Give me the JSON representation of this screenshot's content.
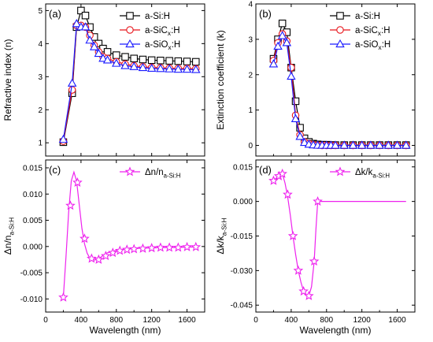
{
  "colors": {
    "black": "#000000",
    "red": "#e8151b",
    "blue": "#1a1aff",
    "magenta": "#ee22ee"
  },
  "chart_data": [
    {
      "panel": "(a)",
      "type": "line",
      "xlabel": "",
      "ylabel": "Refractive index (n)",
      "xlim": [
        0,
        1800
      ],
      "ylim": [
        0.6,
        5.2
      ],
      "xticks": [
        0,
        400,
        800,
        1200,
        1600
      ],
      "yticks": [
        1,
        2,
        3,
        4,
        5
      ],
      "show_xticklabels": false,
      "legend": "top-right",
      "series": [
        {
          "name": "a-Si:H",
          "color": "#000000",
          "marker": "square",
          "x": [
            200,
            300,
            350,
            400,
            450,
            500,
            550,
            600,
            650,
            700,
            800,
            900,
            1000,
            1100,
            1200,
            1300,
            1400,
            1500,
            1600,
            1700
          ],
          "y": [
            1.02,
            2.5,
            4.5,
            5.0,
            4.85,
            4.5,
            4.2,
            4.0,
            3.85,
            3.75,
            3.65,
            3.6,
            3.55,
            3.52,
            3.5,
            3.49,
            3.48,
            3.47,
            3.46,
            3.45
          ]
        },
        {
          "name": "a-SiCx:H",
          "color": "#e8151b",
          "marker": "circle",
          "x": [
            200,
            300,
            350,
            400,
            450,
            500,
            550,
            600,
            650,
            700,
            800,
            900,
            1000,
            1100,
            1200,
            1300,
            1400,
            1500,
            1600,
            1700
          ],
          "y": [
            1.05,
            2.6,
            4.55,
            4.55,
            4.5,
            4.25,
            3.95,
            3.75,
            3.6,
            3.55,
            3.45,
            3.38,
            3.33,
            3.3,
            3.28,
            3.27,
            3.26,
            3.25,
            3.25,
            3.24
          ]
        },
        {
          "name": "a-SiOx:H",
          "color": "#1a1aff",
          "marker": "triangle",
          "x": [
            200,
            300,
            350,
            400,
            450,
            500,
            550,
            600,
            650,
            700,
            800,
            900,
            1000,
            1100,
            1200,
            1300,
            1400,
            1500,
            1600,
            1700
          ],
          "y": [
            1.1,
            2.8,
            4.6,
            4.5,
            4.5,
            4.1,
            3.9,
            3.7,
            3.55,
            3.5,
            3.4,
            3.33,
            3.3,
            3.27,
            3.25,
            3.24,
            3.23,
            3.22,
            3.22,
            3.21
          ]
        }
      ]
    },
    {
      "panel": "(b)",
      "type": "line",
      "xlabel": "",
      "ylabel": "Extinction coefficient (k)",
      "xlim": [
        0,
        1800
      ],
      "ylim": [
        -0.3,
        4
      ],
      "xticks": [
        0,
        400,
        800,
        1200,
        1600
      ],
      "yticks": [
        0,
        1,
        2,
        3,
        4
      ],
      "show_xticklabels": false,
      "legend": "top-right",
      "series": [
        {
          "name": "a-Si:H",
          "color": "#000000",
          "marker": "square",
          "x": [
            200,
            250,
            300,
            350,
            400,
            450,
            500,
            550,
            600,
            650,
            700,
            750,
            800,
            850,
            900,
            1000,
            1100,
            1200,
            1300,
            1400,
            1500,
            1600,
            1700
          ],
          "y": [
            2.45,
            3.0,
            3.45,
            3.2,
            2.2,
            1.25,
            0.5,
            0.2,
            0.1,
            0.05,
            0.03,
            0.02,
            0.02,
            0.01,
            0.01,
            0.01,
            0.01,
            0.01,
            0.01,
            0.01,
            0.01,
            0.01,
            0.01
          ]
        },
        {
          "name": "a-SiCx:H",
          "color": "#e8151b",
          "marker": "circle",
          "x": [
            200,
            250,
            300,
            350,
            400,
            450,
            500,
            550,
            600,
            650,
            700,
            750,
            800,
            850,
            900,
            1000,
            1100,
            1200,
            1300,
            1400,
            1500,
            1600,
            1700
          ],
          "y": [
            2.4,
            2.9,
            3.15,
            2.95,
            2.2,
            0.85,
            0.3,
            0.1,
            0.05,
            0.02,
            0.01,
            0.0,
            0.0,
            0.0,
            0.0,
            0.0,
            0.0,
            0.0,
            0.0,
            0.0,
            0.0,
            0.0,
            0.0
          ]
        },
        {
          "name": "a-SiOx:H",
          "color": "#1a1aff",
          "marker": "triangle",
          "x": [
            200,
            250,
            300,
            350,
            400,
            450,
            500,
            550,
            600,
            650,
            700,
            750,
            800,
            850,
            900,
            1000,
            1100,
            1200,
            1300,
            1400,
            1500,
            1600,
            1700
          ],
          "y": [
            2.3,
            2.8,
            3.1,
            2.9,
            1.95,
            0.75,
            0.25,
            0.08,
            0.03,
            0.01,
            0.0,
            0.0,
            0.0,
            0.0,
            0.0,
            0.0,
            0.0,
            0.0,
            0.0,
            0.0,
            0.0,
            0.0,
            0.0
          ]
        }
      ]
    },
    {
      "panel": "(c)",
      "type": "line",
      "xlabel": "Wavelength (nm)",
      "ylabel": "Δn/na-Si:H",
      "xlim": [
        0,
        1800
      ],
      "ylim": [
        -0.0125,
        0.0165
      ],
      "xticks": [
        0,
        400,
        800,
        1200,
        1600
      ],
      "yticks": [
        -0.01,
        -0.005,
        0.0,
        0.005,
        0.01,
        0.015
      ],
      "ytick_labels": [
        "-0.010",
        "-0.005",
        "0.000",
        "0.005",
        "0.010",
        "0.015"
      ],
      "legend": "top-right",
      "series": [
        {
          "name": "Δn/na-Si:H",
          "color": "#ee22ee",
          "marker": "star",
          "x": [
            200,
            280,
            360,
            440,
            520,
            600,
            680,
            760,
            840,
            920,
            1000,
            1100,
            1200,
            1300,
            1400,
            1500,
            1600,
            1700
          ],
          "y": [
            -0.0097,
            0.0078,
            0.0122,
            0.0015,
            -0.0023,
            -0.0025,
            -0.0018,
            -0.0012,
            -0.0008,
            -0.0006,
            -0.0005,
            -0.0004,
            -0.0003,
            -0.0002,
            -0.0002,
            -0.0002,
            -0.0001,
            -0.0001
          ],
          "curve_x": [
            200,
            230,
            260,
            290,
            320,
            350,
            380,
            410,
            440,
            470,
            500,
            540,
            580,
            620,
            660,
            700,
            760,
            820,
            900,
            1000,
            1100,
            1200,
            1300,
            1400,
            1500,
            1600,
            1700
          ],
          "curve_y": [
            -0.0097,
            -0.002,
            0.0065,
            0.0125,
            0.0142,
            0.0125,
            0.008,
            0.0035,
            0.0005,
            -0.0013,
            -0.0022,
            -0.0026,
            -0.0025,
            -0.0021,
            -0.0016,
            -0.0012,
            -0.0009,
            -0.0007,
            -0.0005,
            -0.0004,
            -0.0003,
            -0.0003,
            -0.0002,
            -0.0002,
            -0.0002,
            -0.0001,
            -0.0001
          ]
        }
      ]
    },
    {
      "panel": "(d)",
      "type": "line",
      "xlabel": "Wavelength (nm)",
      "ylabel": "Δk/ka-Si:H",
      "xlim": [
        0,
        1800
      ],
      "ylim": [
        -0.048,
        0.018
      ],
      "xticks": [
        0,
        400,
        800,
        1200,
        1600
      ],
      "yticks": [
        -0.045,
        -0.03,
        -0.015,
        0.0,
        0.015
      ],
      "ytick_labels": [
        "-0.045",
        "-0.030",
        "-0.015",
        "0.000",
        "0.015"
      ],
      "legend": "top-right",
      "series": [
        {
          "name": "Δk/ka-Si:H",
          "color": "#ee22ee",
          "marker": "star",
          "x": [
            200,
            260,
            300,
            360,
            420,
            480,
            540,
            600,
            660,
            700
          ],
          "y": [
            0.009,
            0.011,
            0.012,
            0.003,
            -0.015,
            -0.03,
            -0.039,
            -0.041,
            -0.026,
            0.0
          ],
          "curve_x": [
            200,
            240,
            280,
            300,
            330,
            360,
            390,
            420,
            450,
            480,
            510,
            540,
            570,
            600,
            630,
            660,
            680,
            700,
            720,
            760,
            900,
            1100,
            1300,
            1500,
            1700
          ],
          "curve_y": [
            0.009,
            0.0105,
            0.0125,
            0.012,
            0.008,
            0.002,
            -0.006,
            -0.015,
            -0.023,
            -0.03,
            -0.035,
            -0.039,
            -0.0405,
            -0.041,
            -0.037,
            -0.026,
            -0.012,
            0.0,
            0.0,
            0.0,
            0.0,
            0.0,
            0.0,
            0.0,
            0.0
          ]
        }
      ]
    }
  ]
}
